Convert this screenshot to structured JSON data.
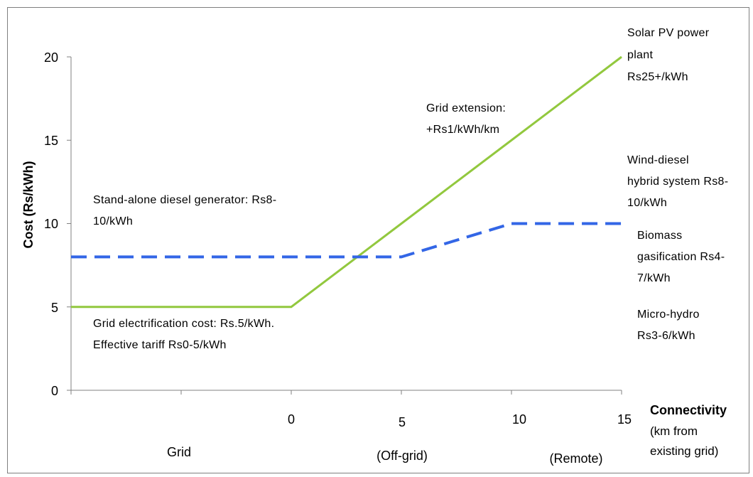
{
  "chart_data": {
    "type": "line",
    "ylabel": "Cost  (Rs/kWh)",
    "ylim": [
      0,
      20
    ],
    "yticks": [
      "0",
      "5",
      "10",
      "15",
      "20"
    ],
    "xlabel": "Connectivity",
    "xlabel_sub": "(km from existing grid)",
    "xlim": [
      -10,
      15
    ],
    "xticks": [
      "0",
      "5",
      "10",
      "15"
    ],
    "xregions": [
      "Grid",
      "(Off-grid)",
      "(Remote)"
    ],
    "series": [
      {
        "style": "solid",
        "color": "#92c83e",
        "x": [
          -10,
          0,
          5,
          10,
          15
        ],
        "values": [
          5,
          5,
          10,
          15,
          20
        ]
      },
      {
        "style": "dashed",
        "color": "#3366e6",
        "x": [
          -10,
          0,
          5,
          10,
          15
        ],
        "values": [
          8,
          8,
          8,
          10,
          10
        ]
      }
    ],
    "annotations": {
      "solar": [
        "Solar PV power",
        "plant",
        "Rs25+/kWh"
      ],
      "grid_ext": [
        "Grid extension:",
        "+Rs1/kWh/km"
      ],
      "wind": [
        "Wind-diesel",
        "hybrid system Rs8-",
        "10/kWh"
      ],
      "diesel": [
        "Stand-alone diesel generator: Rs8-",
        "10/kWh"
      ],
      "biomass": [
        "Biomass",
        "gasification Rs4-",
        "7/kWh"
      ],
      "micro": [
        "Micro-hydro",
        "Rs3-6/kWh"
      ],
      "grid_cost": [
        "Grid electrification cost: Rs.5/kWh.",
        "Effective tariff Rs0-5/kWh"
      ]
    }
  }
}
